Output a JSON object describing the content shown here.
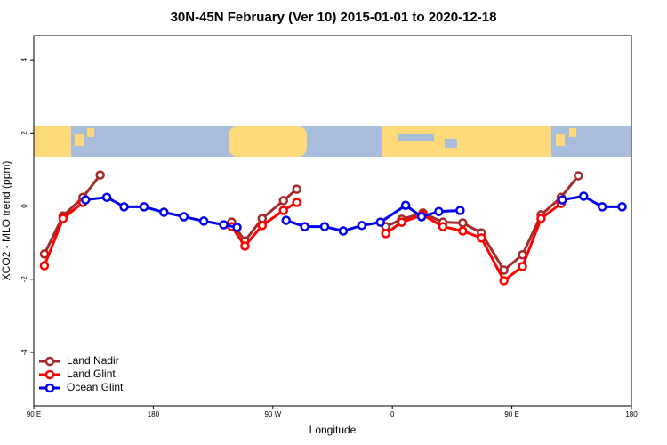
{
  "chart_data": {
    "type": "line",
    "title": "30N-45N February (Ver 10)   2015-01-01 to 2020-12-18",
    "xlabel": "Longitude",
    "ylabel": "XCO2 - MLO trend (ppm)",
    "xlim": [
      90,
      540
    ],
    "ylim": [
      -5.46,
      4.66
    ],
    "xticks": [
      {
        "value": 90,
        "label": "90 E"
      },
      180,
      {
        "value": 270,
        "label": "90 W"
      },
      {
        "value": 360,
        "label": "0"
      },
      {
        "value": 450,
        "label": "90 E"
      },
      {
        "value": 540,
        "label": "180"
      }
    ],
    "yticks": [
      -4,
      -2,
      0,
      2,
      4
    ],
    "legend": "bottom-left",
    "series": [
      {
        "name": "Land Nadir",
        "color": "#a52a2a",
        "x": [
          98,
          112,
          127,
          140,
          null,
          239,
          249,
          262,
          278,
          288,
          null,
          355,
          367,
          383,
          398,
          413,
          427,
          444,
          458,
          472,
          487,
          500
        ],
        "values": [
          -1.31,
          -0.27,
          0.24,
          0.85,
          null,
          -0.44,
          -0.95,
          -0.34,
          0.15,
          0.46,
          null,
          -0.56,
          -0.36,
          -0.19,
          -0.44,
          -0.46,
          -0.73,
          -1.75,
          -1.33,
          -0.24,
          0.24,
          0.83
        ]
      },
      {
        "name": "Land Glint",
        "color": "#ff0000",
        "x": [
          98,
          112,
          127,
          null,
          239,
          249,
          262,
          278,
          288,
          null,
          355,
          367,
          383,
          398,
          413,
          427,
          444,
          458,
          472,
          487
        ],
        "values": [
          -1.63,
          -0.34,
          0.1,
          null,
          -0.56,
          -1.09,
          -0.53,
          -0.12,
          0.1,
          null,
          -0.75,
          -0.44,
          -0.24,
          -0.56,
          -0.68,
          -0.87,
          -2.04,
          -1.65,
          -0.34,
          0.07
        ]
      },
      {
        "name": "Ocean Glint",
        "color": "#0000ee",
        "x": [
          129,
          145,
          158,
          173,
          188,
          203,
          218,
          233,
          243,
          null,
          280,
          294,
          309,
          323,
          337,
          351,
          370,
          382,
          395,
          411,
          null,
          488,
          504,
          518,
          533
        ],
        "values": [
          0.17,
          0.24,
          -0.02,
          -0.02,
          -0.17,
          -0.29,
          -0.41,
          -0.51,
          -0.58,
          null,
          -0.39,
          -0.56,
          -0.56,
          -0.68,
          -0.53,
          -0.44,
          0.02,
          -0.29,
          -0.15,
          -0.12,
          null,
          0.17,
          0.27,
          -0.02,
          -0.02
        ]
      }
    ]
  }
}
